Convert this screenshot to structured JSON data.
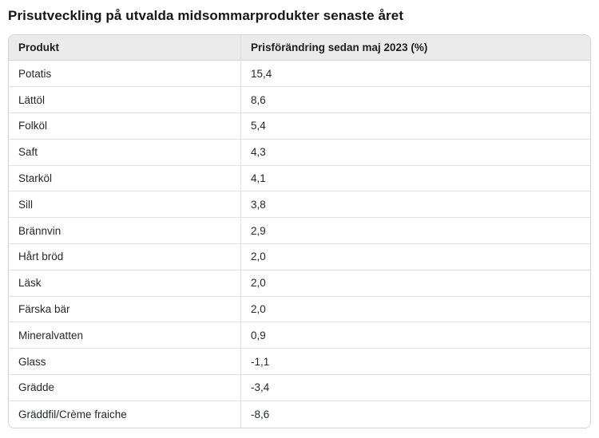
{
  "page_title": "Prisutveckling på utvalda midsommarprodukter senaste året",
  "table": {
    "headers": {
      "product": "Produkt",
      "change": "Prisförändring sedan maj 2023 (%)"
    },
    "rows": [
      {
        "product": "Potatis",
        "change": "15,4"
      },
      {
        "product": "Lättöl",
        "change": "8,6"
      },
      {
        "product": "Folköl",
        "change": "5,4"
      },
      {
        "product": "Saft",
        "change": "4,3"
      },
      {
        "product": "Starköl",
        "change": "4,1"
      },
      {
        "product": "Sill",
        "change": "3,8"
      },
      {
        "product": "Brännvin",
        "change": "2,9"
      },
      {
        "product": "Hårt bröd",
        "change": "2,0"
      },
      {
        "product": "Läsk",
        "change": "2,0"
      },
      {
        "product": "Färska bär",
        "change": "2,0"
      },
      {
        "product": "Mineralvatten",
        "change": "0,9"
      },
      {
        "product": "Glass",
        "change": "-1,1"
      },
      {
        "product": "Grädde",
        "change": "-3,4"
      },
      {
        "product": "Gräddfil/Crème fraiche",
        "change": "-8,6"
      }
    ]
  },
  "colors": {
    "header_background": "#ebebeb",
    "outer_border": "#d3d3d6",
    "row_divider": "#e2e2e4",
    "text": "#24272b",
    "title_text": "#14161a"
  },
  "chart_data": {
    "type": "table",
    "title": "Prisutveckling på utvalda midsommarprodukter senaste året",
    "columns": [
      "Produkt",
      "Prisförändring sedan maj 2023 (%)"
    ],
    "categories": [
      "Potatis",
      "Lättöl",
      "Folköl",
      "Saft",
      "Starköl",
      "Sill",
      "Brännvin",
      "Hårt bröd",
      "Läsk",
      "Färska bär",
      "Mineralvatten",
      "Glass",
      "Grädde",
      "Gräddfil/Crème fraiche"
    ],
    "values": [
      15.4,
      8.6,
      5.4,
      4.3,
      4.1,
      3.8,
      2.9,
      2.0,
      2.0,
      2.0,
      0.9,
      -1.1,
      -3.4,
      -8.6
    ],
    "value_format": "decimal comma, one decimal place",
    "layout": "single two-column table, header row shaded gray, rounded outer border"
  }
}
